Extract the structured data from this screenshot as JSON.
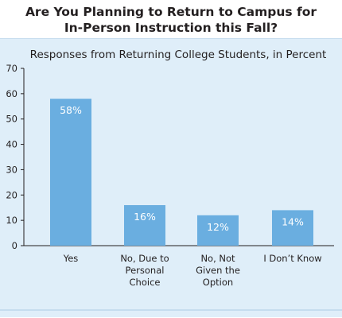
{
  "chart_data": {
    "type": "bar",
    "title": [
      "Are You Planning to Return to Campus for",
      "In-Person Instruction this Fall?"
    ],
    "subtitle": "Responses from Returning College Students, in Percent",
    "categories": [
      [
        "Yes"
      ],
      [
        "No, Due to",
        "Personal",
        "Choice"
      ],
      [
        "No, Not",
        "Given the",
        "Option"
      ],
      [
        "I Don’t Know"
      ]
    ],
    "values": [
      58,
      16,
      12,
      14
    ],
    "data_labels": [
      "58%",
      "16%",
      "12%",
      "14%"
    ],
    "ylim": [
      0,
      70
    ],
    "yticks": [
      0,
      10,
      20,
      30,
      40,
      50,
      60,
      70
    ],
    "grid": false,
    "colors": {
      "bar": "#6aaee0",
      "panel": "#dfeef9",
      "axis": "#231f20"
    }
  }
}
